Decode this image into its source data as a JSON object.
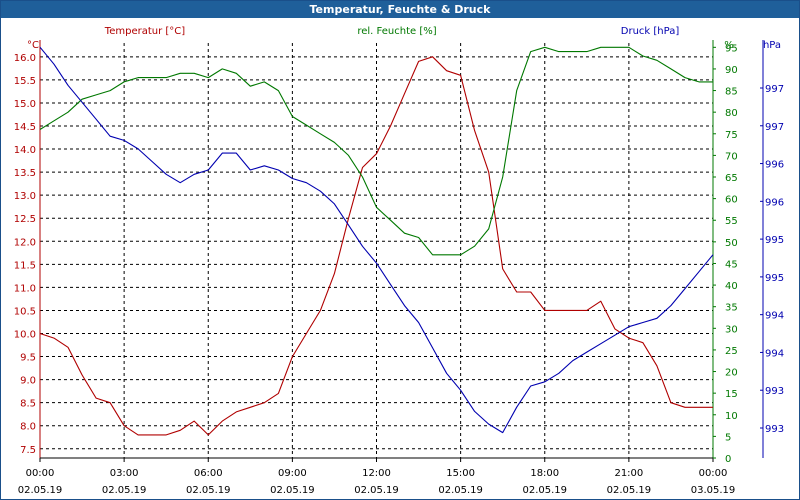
{
  "title": "Temperatur, Feuchte & Druck",
  "chart_data": {
    "type": "line",
    "title": "Temperatur, Feuchte & Druck",
    "colors": {
      "temperature": "#b00000",
      "humidity": "#007800",
      "pressure": "#0000b0",
      "title_bar": "#1f5f9a"
    },
    "grid": true,
    "x_ticks": [
      {
        "time": "00:00",
        "date": "02.05.19"
      },
      {
        "time": "03:00",
        "date": "02.05.19"
      },
      {
        "time": "06:00",
        "date": "02.05.19"
      },
      {
        "time": "09:00",
        "date": "02.05.19"
      },
      {
        "time": "12:00",
        "date": "02.05.19"
      },
      {
        "time": "15:00",
        "date": "02.05.19"
      },
      {
        "time": "18:00",
        "date": "02.05.19"
      },
      {
        "time": "21:00",
        "date": "02.05.19"
      },
      {
        "time": "00:00",
        "date": "03.05.19"
      }
    ],
    "x_range_hours": [
      0,
      24
    ],
    "axes": {
      "temperature": {
        "label": "Temperatur [°C]",
        "unit": "°C",
        "range": [
          7.3,
          16.3
        ],
        "ticks": [
          "7.5",
          "8.0",
          "8.5",
          "9.0",
          "9.5",
          "10.0",
          "10.5",
          "11.0",
          "11.5",
          "12.0",
          "12.5",
          "13.0",
          "13.5",
          "14.0",
          "14.5",
          "15.0",
          "15.5",
          "16.0"
        ]
      },
      "humidity": {
        "label": "rel. Feuchte [%]",
        "unit": "%",
        "range": [
          0,
          96
        ],
        "ticks": [
          "0",
          "5",
          "10",
          "15",
          "20",
          "25",
          "30",
          "35",
          "40",
          "45",
          "50",
          "55",
          "60",
          "65",
          "70",
          "75",
          "80",
          "85",
          "90",
          "95"
        ]
      },
      "pressure": {
        "label": "Druck [hPa]",
        "unit": "hPa",
        "range": [
          992.7,
          997.6
        ],
        "ticks": [
          "993",
          "993",
          "994",
          "994",
          "995",
          "995",
          "996",
          "996",
          "997",
          "997"
        ]
      }
    },
    "series": [
      {
        "name": "Temperatur [°C]",
        "axis": "temperature",
        "x": [
          0,
          0.5,
          1,
          1.5,
          2,
          2.5,
          3,
          3.5,
          4,
          4.5,
          5,
          5.5,
          6,
          6.5,
          7,
          7.5,
          8,
          8.5,
          9,
          9.5,
          10,
          10.5,
          11,
          11.5,
          12,
          12.5,
          13,
          13.5,
          14,
          14.5,
          15,
          15.5,
          16,
          16.5,
          17,
          17.5,
          18,
          18.5,
          19,
          19.5,
          20,
          20.5,
          21,
          21.5,
          22,
          22.5,
          23,
          23.5,
          24
        ],
        "values": [
          10.0,
          9.9,
          9.7,
          9.1,
          8.6,
          8.5,
          8.0,
          7.8,
          7.8,
          7.8,
          7.9,
          8.1,
          7.8,
          8.1,
          8.3,
          8.4,
          8.5,
          8.7,
          9.5,
          10.0,
          10.5,
          11.3,
          12.5,
          13.6,
          13.9,
          14.5,
          15.2,
          15.9,
          16.0,
          15.7,
          15.6,
          14.4,
          13.5,
          11.4,
          10.9,
          10.9,
          10.5,
          10.5,
          10.5,
          10.5,
          10.7,
          10.1,
          9.9,
          9.8,
          9.3,
          8.5,
          8.4,
          8.4,
          8.4
        ]
      },
      {
        "name": "rel. Feuchte [%]",
        "axis": "humidity",
        "x": [
          0,
          0.5,
          1,
          1.5,
          2,
          2.5,
          3,
          3.5,
          4,
          4.5,
          5,
          5.5,
          6,
          6.5,
          7,
          7.5,
          8,
          8.5,
          9,
          9.5,
          10,
          10.5,
          11,
          11.5,
          12,
          12.5,
          13,
          13.5,
          14,
          14.5,
          15,
          15.5,
          16,
          16.5,
          17,
          17.5,
          18,
          18.5,
          19,
          19.5,
          20,
          20.5,
          21,
          21.5,
          22,
          22.5,
          23,
          23.5,
          24
        ],
        "values": [
          76,
          78,
          80,
          83,
          84,
          85,
          87,
          88,
          88,
          88,
          89,
          89,
          88,
          90,
          89,
          86,
          87,
          85,
          79,
          77,
          75,
          73,
          70,
          65,
          58,
          55,
          52,
          51,
          47,
          47,
          47,
          49,
          53,
          65,
          85,
          94,
          95,
          94,
          94,
          94,
          95,
          95,
          95,
          93,
          92,
          90,
          88,
          87,
          87
        ]
      },
      {
        "name": "Druck [hPa]",
        "axis": "pressure",
        "x": [
          0,
          0.5,
          1,
          1.5,
          2,
          2.5,
          3,
          3.5,
          4,
          4.5,
          5,
          5.5,
          6,
          6.5,
          7,
          7.5,
          8,
          8.5,
          9,
          9.5,
          10,
          10.5,
          11,
          11.5,
          12,
          12.5,
          13,
          13.5,
          14,
          14.5,
          15,
          15.5,
          16,
          16.5,
          17,
          17.5,
          18,
          18.5,
          19,
          19.5,
          20,
          20.5,
          21,
          21.5,
          22,
          22.5,
          23,
          23.5,
          24
        ],
        "values": [
          997.55,
          997.35,
          997.1,
          996.9,
          996.7,
          996.5,
          996.45,
          996.35,
          996.2,
          996.05,
          995.95,
          996.05,
          996.1,
          996.3,
          996.3,
          996.1,
          996.15,
          996.1,
          996.0,
          995.95,
          995.85,
          995.7,
          995.45,
          995.2,
          995.0,
          994.75,
          994.5,
          994.3,
          994.0,
          993.7,
          993.5,
          993.25,
          993.1,
          993.0,
          993.3,
          993.55,
          993.6,
          993.7,
          993.85,
          993.95,
          994.05,
          994.15,
          994.25,
          994.3,
          994.35,
          994.5,
          994.7,
          994.9,
          995.1
        ]
      }
    ]
  }
}
